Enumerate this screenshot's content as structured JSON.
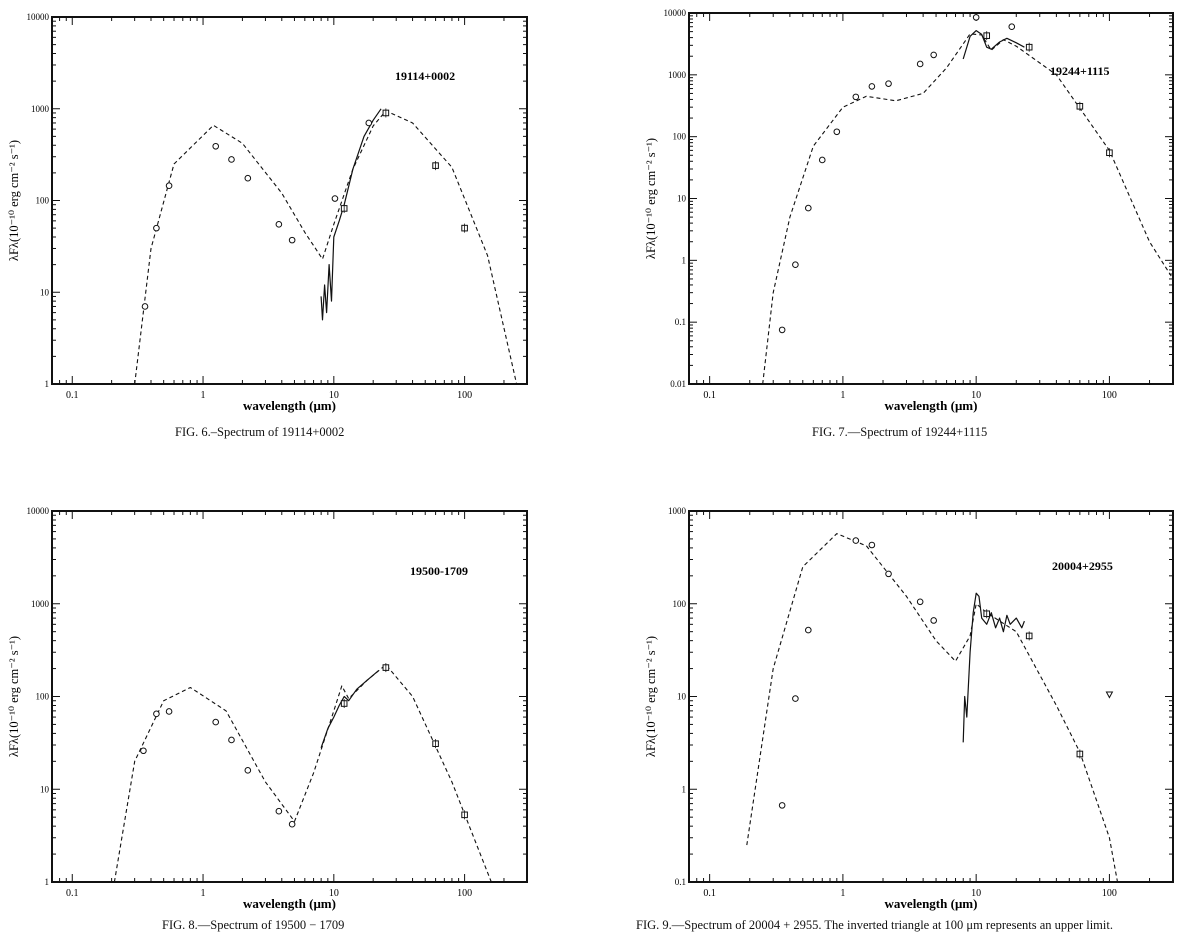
{
  "chart_data": [
    {
      "type": "scatter",
      "title": "19114+0002",
      "caption": "FIG. 6.–Spectrum of 19114+0002",
      "xlabel": "wavelength (μm)",
      "ylabel": "λF_λ(10^-10 erg cm^-2 s^-1)",
      "x_scale": "log",
      "y_scale": "log",
      "xlim": [
        0.07,
        300
      ],
      "ylim": [
        1,
        10000
      ],
      "x_ticks": [
        0.1,
        1,
        10,
        100
      ],
      "x_tick_labels": [
        "0.1",
        "1",
        "10",
        "100"
      ],
      "y_ticks": [
        1,
        10,
        100,
        1000,
        10000
      ],
      "y_tick_labels": [
        "1",
        "10",
        "100",
        "1000",
        "10000"
      ],
      "circles": [
        [
          0.36,
          7
        ],
        [
          0.44,
          50
        ],
        [
          0.55,
          145
        ],
        [
          1.25,
          390
        ],
        [
          1.65,
          280
        ],
        [
          2.2,
          175
        ],
        [
          3.8,
          55
        ],
        [
          4.8,
          37
        ],
        [
          10.2,
          105
        ],
        [
          18.5,
          700
        ]
      ],
      "squares": [
        [
          12,
          82
        ],
        [
          25,
          900
        ],
        [
          60,
          240
        ],
        [
          100,
          50
        ]
      ],
      "triangles": [],
      "model": [
        [
          0.3,
          1
        ],
        [
          0.4,
          30
        ],
        [
          0.6,
          250
        ],
        [
          1.2,
          660
        ],
        [
          2,
          420
        ],
        [
          4,
          120
        ],
        [
          6,
          45
        ],
        [
          8.2,
          23
        ],
        [
          10,
          55
        ],
        [
          14,
          220
        ],
        [
          20,
          650
        ],
        [
          25,
          950
        ],
        [
          40,
          700
        ],
        [
          80,
          230
        ],
        [
          150,
          25
        ],
        [
          250,
          1
        ]
      ],
      "spectrum": [
        [
          8,
          9
        ],
        [
          8.2,
          5
        ],
        [
          8.5,
          12
        ],
        [
          8.8,
          6
        ],
        [
          9.2,
          20
        ],
        [
          9.6,
          8
        ],
        [
          10,
          40
        ],
        [
          11,
          60
        ],
        [
          12,
          90
        ],
        [
          14,
          220
        ],
        [
          17,
          500
        ],
        [
          20,
          750
        ],
        [
          23,
          1000
        ]
      ]
    },
    {
      "type": "scatter",
      "title": "19244+1115",
      "caption": "FIG. 7.—Spectrum of 19244+1115",
      "xlabel": "wavelength (μm)",
      "ylabel": "λF_λ(10^-10 erg cm^-2 s^-1)",
      "x_scale": "log",
      "y_scale": "log",
      "xlim": [
        0.07,
        300
      ],
      "ylim": [
        0.01,
        10000
      ],
      "x_ticks": [
        0.1,
        1,
        10,
        100
      ],
      "x_tick_labels": [
        "0.1",
        "1",
        "10",
        "100"
      ],
      "y_ticks": [
        0.01,
        0.1,
        1,
        10,
        100,
        1000,
        10000
      ],
      "y_tick_labels": [
        "0.01",
        "0.1",
        "1",
        "10",
        "100",
        "1000",
        "10000"
      ],
      "circles": [
        [
          0.35,
          0.075
        ],
        [
          0.44,
          0.85
        ],
        [
          0.55,
          7
        ],
        [
          0.7,
          42
        ],
        [
          0.9,
          120
        ],
        [
          1.25,
          440
        ],
        [
          1.65,
          650
        ],
        [
          2.2,
          720
        ],
        [
          3.8,
          1500
        ],
        [
          4.8,
          2100
        ],
        [
          10,
          8500
        ],
        [
          18.5,
          6000
        ]
      ],
      "squares": [
        [
          12,
          4300
        ],
        [
          25,
          2800
        ],
        [
          60,
          310
        ],
        [
          100,
          55
        ]
      ],
      "triangles": [],
      "model": [
        [
          0.25,
          0.01
        ],
        [
          0.3,
          0.3
        ],
        [
          0.4,
          5
        ],
        [
          0.6,
          70
        ],
        [
          1,
          300
        ],
        [
          1.5,
          450
        ],
        [
          2.5,
          380
        ],
        [
          4,
          500
        ],
        [
          6,
          1300
        ],
        [
          9,
          4600
        ],
        [
          11,
          4400
        ],
        [
          13,
          2500
        ],
        [
          16,
          3700
        ],
        [
          20,
          2900
        ],
        [
          40,
          1000
        ],
        [
          100,
          60
        ],
        [
          200,
          2
        ],
        [
          300,
          0.5
        ]
      ],
      "spectrum": [
        [
          8,
          1800
        ],
        [
          9,
          4200
        ],
        [
          10,
          5200
        ],
        [
          11,
          4500
        ],
        [
          12,
          2800
        ],
        [
          13,
          2600
        ],
        [
          15,
          3400
        ],
        [
          17,
          3900
        ],
        [
          20,
          3300
        ],
        [
          23,
          2800
        ]
      ]
    },
    {
      "type": "scatter",
      "title": "19500-1709",
      "caption": "FIG. 8.—Spectrum of 19500 − 1709",
      "xlabel": "wavelength (μm)",
      "ylabel": "λF_λ(10^-10 erg cm^-2 s^-1)",
      "x_scale": "log",
      "y_scale": "log",
      "xlim": [
        0.07,
        300
      ],
      "ylim": [
        1,
        10000
      ],
      "x_ticks": [
        0.1,
        1,
        10,
        100
      ],
      "x_tick_labels": [
        "0.1",
        "1",
        "10",
        "100"
      ],
      "y_ticks": [
        1,
        10,
        100,
        1000,
        10000
      ],
      "y_tick_labels": [
        "1",
        "10",
        "100",
        "1000",
        "10000"
      ],
      "circles": [
        [
          0.35,
          26
        ],
        [
          0.44,
          65
        ],
        [
          0.55,
          69
        ],
        [
          1.25,
          53
        ],
        [
          1.65,
          34
        ],
        [
          2.2,
          16
        ],
        [
          3.8,
          5.8
        ],
        [
          4.8,
          4.2
        ]
      ],
      "squares": [
        [
          12,
          84
        ],
        [
          25,
          205
        ],
        [
          60,
          31
        ],
        [
          100,
          5.3
        ]
      ],
      "triangles": [],
      "model": [
        [
          0.21,
          1
        ],
        [
          0.3,
          20
        ],
        [
          0.5,
          90
        ],
        [
          0.8,
          125
        ],
        [
          1.5,
          70
        ],
        [
          3,
          12
        ],
        [
          5,
          4.5
        ],
        [
          7,
          15
        ],
        [
          10,
          70
        ],
        [
          11.5,
          130
        ],
        [
          13,
          95
        ],
        [
          18,
          150
        ],
        [
          25,
          220
        ],
        [
          40,
          100
        ],
        [
          80,
          12
        ],
        [
          160,
          1
        ]
      ],
      "spectrum": [
        [
          8,
          28
        ],
        [
          9,
          45
        ],
        [
          10,
          60
        ],
        [
          11,
          80
        ],
        [
          12,
          100
        ],
        [
          13,
          90
        ],
        [
          15,
          120
        ],
        [
          18,
          150
        ],
        [
          22,
          190
        ]
      ]
    },
    {
      "type": "scatter",
      "title": "20004+2955",
      "caption": "FIG. 9.—Spectrum of 20004 + 2955. The inverted triangle at 100 μm represents an upper limit.",
      "xlabel": "wavelength (μm)",
      "ylabel": "λF_λ(10^-10 erg cm^-2 s^-1)",
      "x_scale": "log",
      "y_scale": "log",
      "xlim": [
        0.07,
        300
      ],
      "ylim": [
        0.1,
        1000
      ],
      "x_ticks": [
        0.1,
        1,
        10,
        100
      ],
      "x_tick_labels": [
        "0.1",
        "1",
        "10",
        "100"
      ],
      "y_ticks": [
        0.1,
        1,
        10,
        100,
        1000
      ],
      "y_tick_labels": [
        "0.1",
        "1",
        "10",
        "100",
        "1000"
      ],
      "circles": [
        [
          0.35,
          0.67
        ],
        [
          0.44,
          9.5
        ],
        [
          0.55,
          52
        ],
        [
          1.25,
          480
        ],
        [
          1.65,
          430
        ],
        [
          2.2,
          210
        ],
        [
          3.8,
          105
        ],
        [
          4.8,
          66
        ]
      ],
      "squares": [
        [
          12,
          78
        ],
        [
          25,
          45
        ],
        [
          60,
          2.4
        ]
      ],
      "triangles": [
        [
          100,
          10.5
        ]
      ],
      "model": [
        [
          0.19,
          0.25
        ],
        [
          0.3,
          20
        ],
        [
          0.5,
          250
        ],
        [
          0.9,
          570
        ],
        [
          1.5,
          420
        ],
        [
          3,
          120
        ],
        [
          5,
          40
        ],
        [
          7,
          24
        ],
        [
          9,
          45
        ],
        [
          10,
          100
        ],
        [
          12,
          80
        ],
        [
          20,
          50
        ],
        [
          40,
          8
        ],
        [
          60,
          2.5
        ],
        [
          100,
          0.3
        ],
        [
          115,
          0.1
        ]
      ],
      "spectrum": [
        [
          8,
          3.2
        ],
        [
          8.2,
          10
        ],
        [
          8.5,
          6
        ],
        [
          9,
          30
        ],
        [
          9.5,
          80
        ],
        [
          10,
          130
        ],
        [
          10.5,
          120
        ],
        [
          11,
          70
        ],
        [
          12,
          60
        ],
        [
          13,
          80
        ],
        [
          14,
          55
        ],
        [
          15,
          70
        ],
        [
          16,
          50
        ],
        [
          17,
          75
        ],
        [
          18,
          60
        ],
        [
          20,
          70
        ],
        [
          22,
          55
        ],
        [
          23,
          65
        ]
      ]
    }
  ]
}
